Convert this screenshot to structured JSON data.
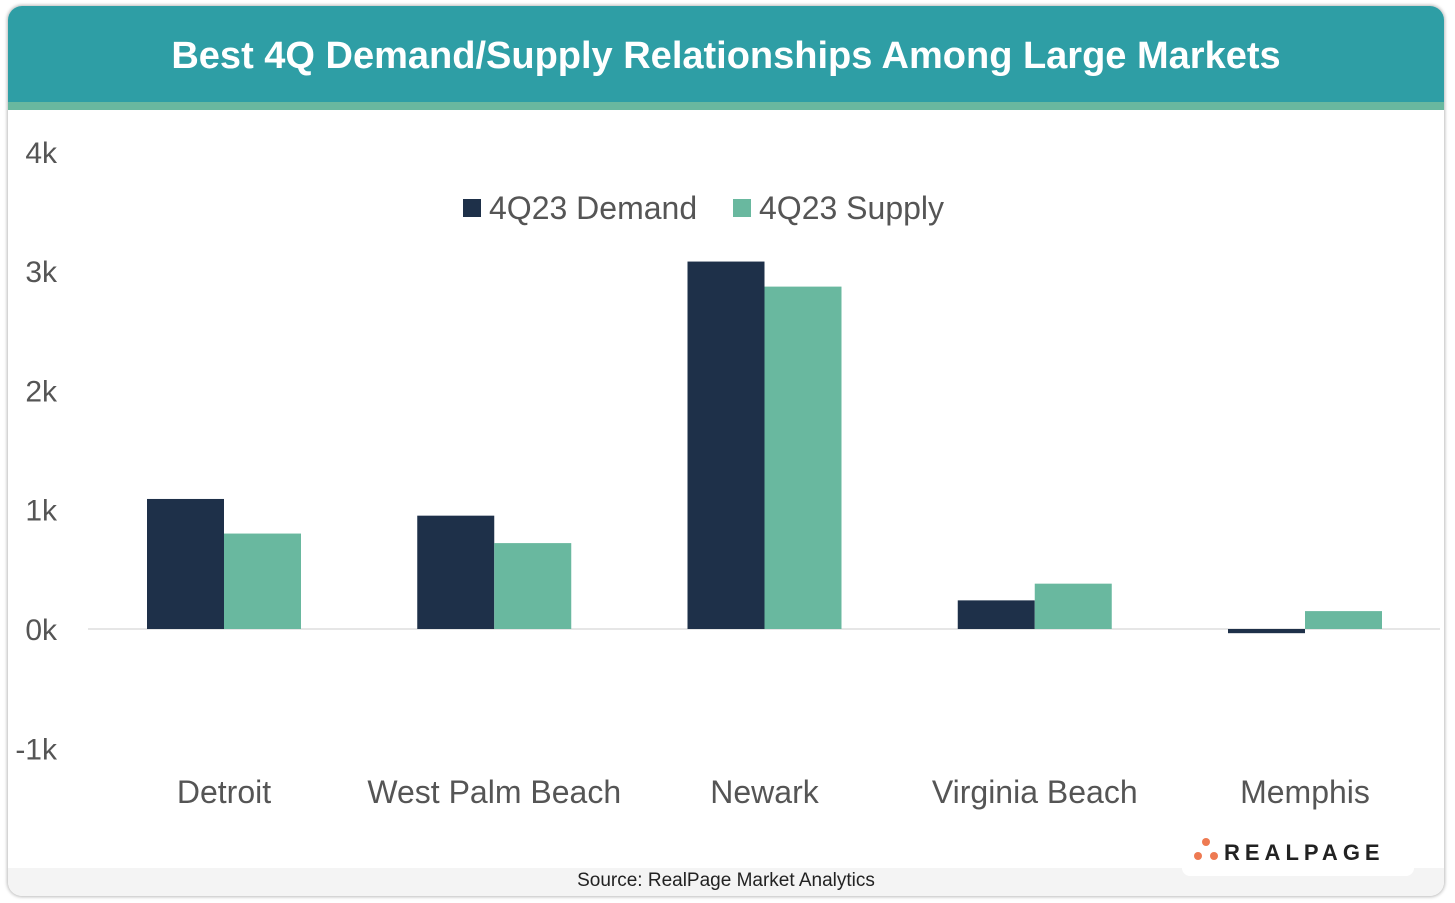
{
  "title": "Best 4Q Demand/Supply Relationships Among Large Markets",
  "source": "Source: RealPage Market Analytics",
  "logo": "REALPAGE",
  "colors": {
    "header": "#2e9ea5",
    "band": "#69b89f",
    "demand": "#1e3049",
    "supply": "#69b89f"
  },
  "chart_data": {
    "type": "bar",
    "categories": [
      "Detroit",
      "West Palm Beach",
      "Newark",
      "Virginia Beach",
      "Memphis"
    ],
    "series": [
      {
        "name": "4Q23 Demand",
        "values": [
          1090,
          950,
          3080,
          240,
          -35
        ]
      },
      {
        "name": "4Q23 Supply",
        "values": [
          800,
          720,
          2870,
          380,
          150
        ]
      }
    ],
    "ylim": [
      -1000,
      4000
    ],
    "yticks": [
      4000,
      3000,
      2000,
      1000,
      0,
      -1000
    ],
    "ytick_labels": [
      "4k",
      "3k",
      "2k",
      "1k",
      "0k",
      "-1k"
    ],
    "legend": "top-center",
    "grid": false
  }
}
